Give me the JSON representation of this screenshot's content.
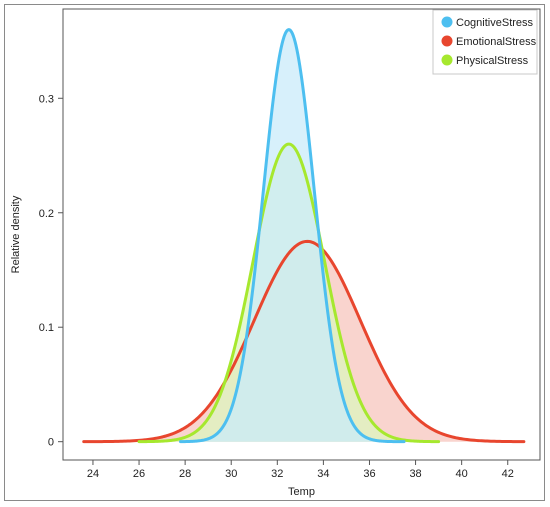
{
  "chart_data": {
    "type": "area",
    "xlabel": "Temp",
    "ylabel": "Relative density",
    "xlim": [
      22.7,
      43.4
    ],
    "ylim": [
      -0.016,
      0.378
    ],
    "x_ticks": [
      24,
      26,
      28,
      30,
      32,
      34,
      36,
      38,
      40,
      42
    ],
    "y_ticks": [
      0,
      0.1,
      0.2,
      0.3
    ],
    "x_tick_labels": [
      "24",
      "26",
      "28",
      "30",
      "32",
      "34",
      "36",
      "38",
      "40",
      "42"
    ],
    "y_tick_labels": [
      "0",
      "0.1",
      "0.2",
      "0.3"
    ],
    "grid": false,
    "legend_position": "top-right",
    "series": [
      {
        "name": "CognitiveStress",
        "color": "#4dbff0",
        "fill": "#c9ebfa",
        "distribution": "normal",
        "mean": 32.5,
        "sd": 1.11,
        "peak": 0.36,
        "x_range": [
          27.8,
          37.5
        ]
      },
      {
        "name": "EmotionalStress",
        "color": "#e8462e",
        "fill": "#f7c5bd",
        "distribution": "normal",
        "mean": 33.3,
        "sd": 2.3,
        "peak": 0.175,
        "x_range": [
          23.6,
          42.7
        ]
      },
      {
        "name": "PhysicalStress",
        "color": "#a6e82e",
        "fill": "#dcf5bd",
        "distribution": "normal",
        "mean": 32.5,
        "sd": 1.55,
        "peak": 0.26,
        "x_range": [
          26.0,
          39.0
        ]
      }
    ]
  }
}
